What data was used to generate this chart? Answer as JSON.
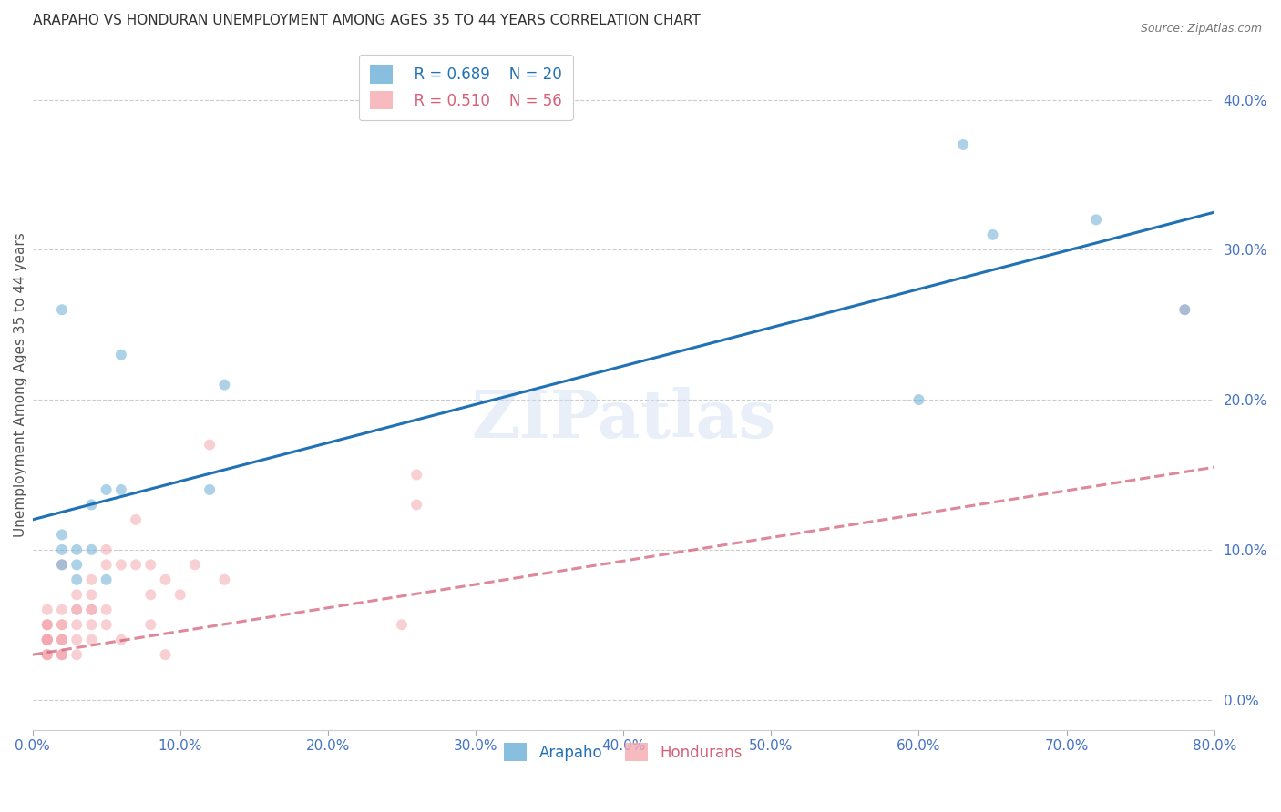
{
  "title": "ARAPAHO VS HONDURAN UNEMPLOYMENT AMONG AGES 35 TO 44 YEARS CORRELATION CHART",
  "source": "Source: ZipAtlas.com",
  "ylabel": "Unemployment Among Ages 35 to 44 years",
  "xlim": [
    0.0,
    0.8
  ],
  "ylim": [
    -0.02,
    0.44
  ],
  "yticks": [
    0.0,
    0.1,
    0.2,
    0.3,
    0.4
  ],
  "xticks": [
    0.0,
    0.1,
    0.2,
    0.3,
    0.4,
    0.5,
    0.6,
    0.7,
    0.8
  ],
  "background_color": "#ffffff",
  "watermark": "ZIPatlas",
  "legend_r_arapaho": "R = 0.689",
  "legend_n_arapaho": "N = 20",
  "legend_r_honduran": "R = 0.510",
  "legend_n_honduran": "N = 56",
  "arapaho_color": "#6baed6",
  "honduran_color": "#f4a9b0",
  "arapaho_line_color": "#2171b5",
  "honduran_line_color": "#d4607a",
  "grid_color": "#cccccc",
  "arapaho_line_x0": 0.0,
  "arapaho_line_y0": 0.12,
  "arapaho_line_x1": 0.8,
  "arapaho_line_y1": 0.325,
  "honduran_line_x0": 0.0,
  "honduran_line_y0": 0.03,
  "honduran_line_x1": 0.8,
  "honduran_line_y1": 0.155,
  "title_fontsize": 11,
  "axis_label_fontsize": 11,
  "tick_fontsize": 11,
  "legend_fontsize": 12,
  "marker_size": 75,
  "marker_alpha": 0.55,
  "line_width": 2.2,
  "arapaho_x": [
    0.02,
    0.02,
    0.02,
    0.02,
    0.03,
    0.03,
    0.03,
    0.04,
    0.04,
    0.05,
    0.05,
    0.06,
    0.06,
    0.12,
    0.13,
    0.6,
    0.63,
    0.65,
    0.72,
    0.78
  ],
  "arapaho_y": [
    0.09,
    0.1,
    0.11,
    0.26,
    0.08,
    0.09,
    0.1,
    0.1,
    0.13,
    0.08,
    0.14,
    0.14,
    0.23,
    0.14,
    0.21,
    0.2,
    0.37,
    0.31,
    0.32,
    0.26
  ],
  "honduran_x": [
    0.01,
    0.01,
    0.01,
    0.01,
    0.01,
    0.01,
    0.01,
    0.01,
    0.01,
    0.01,
    0.01,
    0.01,
    0.01,
    0.02,
    0.02,
    0.02,
    0.02,
    0.02,
    0.02,
    0.02,
    0.02,
    0.02,
    0.02,
    0.03,
    0.03,
    0.03,
    0.03,
    0.03,
    0.03,
    0.04,
    0.04,
    0.04,
    0.04,
    0.04,
    0.04,
    0.05,
    0.05,
    0.05,
    0.05,
    0.06,
    0.06,
    0.07,
    0.07,
    0.08,
    0.08,
    0.08,
    0.09,
    0.09,
    0.1,
    0.11,
    0.12,
    0.13,
    0.25,
    0.26,
    0.26,
    0.78
  ],
  "honduran_y": [
    0.03,
    0.03,
    0.03,
    0.04,
    0.04,
    0.04,
    0.04,
    0.04,
    0.04,
    0.05,
    0.05,
    0.05,
    0.06,
    0.03,
    0.03,
    0.03,
    0.04,
    0.04,
    0.04,
    0.05,
    0.05,
    0.06,
    0.09,
    0.03,
    0.04,
    0.05,
    0.06,
    0.06,
    0.07,
    0.04,
    0.05,
    0.06,
    0.06,
    0.07,
    0.08,
    0.05,
    0.06,
    0.09,
    0.1,
    0.04,
    0.09,
    0.09,
    0.12,
    0.05,
    0.07,
    0.09,
    0.03,
    0.08,
    0.07,
    0.09,
    0.17,
    0.08,
    0.05,
    0.13,
    0.15,
    0.26
  ]
}
